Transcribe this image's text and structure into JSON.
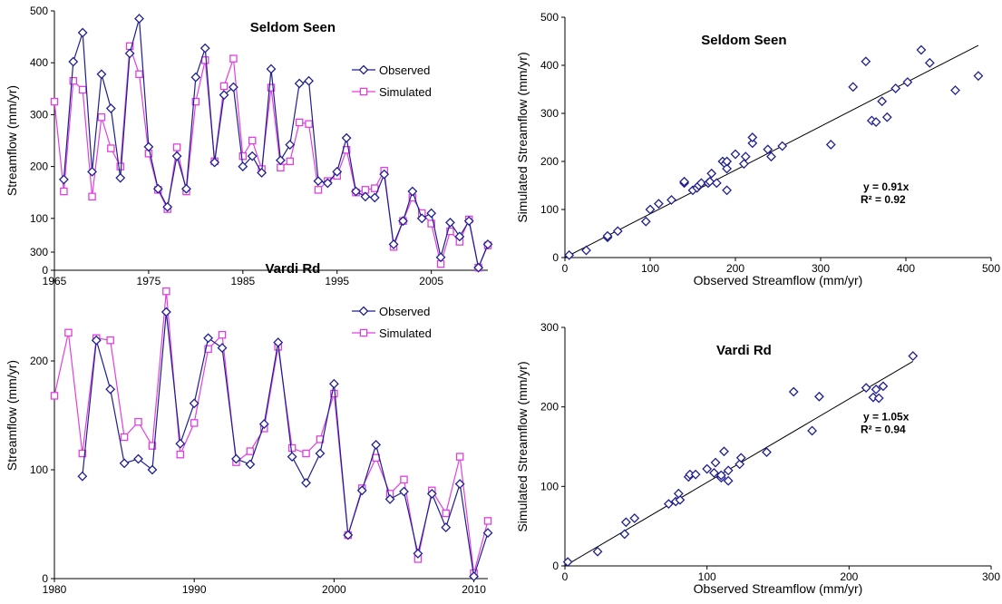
{
  "colors": {
    "observed": "#1f1f8f",
    "simulated": "#e040e0",
    "axis": "#000000",
    "fit": "#000000"
  },
  "chart_data": [
    {
      "type": "line",
      "title": "Seldom Seen",
      "xlabel": "",
      "ylabel": "Streamflow (mm/yr)",
      "xlim": [
        1965,
        2011
      ],
      "ylim": [
        0,
        500
      ],
      "xticks": [
        1965,
        1975,
        1985,
        1995,
        2005
      ],
      "yticks": [
        0,
        100,
        200,
        300,
        400,
        500
      ],
      "legend": "right",
      "series": [
        {
          "name": "Observed",
          "marker": "diamond",
          "x": [
            1966,
            1967,
            1968,
            1969,
            1970,
            1971,
            1972,
            1973,
            1974,
            1975,
            1976,
            1977,
            1978,
            1979,
            1980,
            1981,
            1982,
            1983,
            1984,
            1985,
            1986,
            1987,
            1988,
            1989,
            1990,
            1991,
            1992,
            1993,
            1994,
            1995,
            1996,
            1997,
            1998,
            1999,
            2000,
            2001,
            2002,
            2003,
            2004,
            2005,
            2006,
            2007,
            2008,
            2009,
            2010,
            2011
          ],
          "values": [
            175,
            402,
            458,
            190,
            378,
            312,
            178,
            418,
            485,
            238,
            157,
            122,
            220,
            157,
            372,
            428,
            208,
            338,
            353,
            200,
            220,
            188,
            388,
            212,
            242,
            360,
            365,
            172,
            168,
            190,
            255,
            152,
            142,
            140,
            185,
            50,
            95,
            152,
            100,
            110,
            25,
            92,
            65,
            95,
            5,
            50
          ]
        },
        {
          "name": "Simulated",
          "marker": "square",
          "x": [
            1965,
            1966,
            1967,
            1968,
            1969,
            1970,
            1971,
            1972,
            1973,
            1974,
            1975,
            1976,
            1977,
            1978,
            1979,
            1980,
            1981,
            1982,
            1983,
            1984,
            1985,
            1986,
            1987,
            1988,
            1989,
            1990,
            1991,
            1992,
            1993,
            1994,
            1995,
            1996,
            1997,
            1998,
            1999,
            2000,
            2001,
            2002,
            2003,
            2004,
            2005,
            2006,
            2007,
            2008,
            2009,
            2010,
            2011
          ],
          "values": [
            325,
            152,
            365,
            348,
            142,
            295,
            235,
            200,
            432,
            378,
            225,
            155,
            118,
            237,
            152,
            325,
            405,
            210,
            355,
            408,
            220,
            250,
            195,
            352,
            198,
            210,
            285,
            282,
            155,
            172,
            182,
            232,
            150,
            155,
            158,
            192,
            45,
            95,
            140,
            110,
            90,
            12,
            75,
            55,
            98,
            5,
            48
          ]
        }
      ]
    },
    {
      "type": "scatter",
      "title": "Seldom Seen",
      "xlabel": "Observed Streamflow (mm/yr)",
      "ylabel": "Simulated Streamflow (mm/yr)",
      "xlim": [
        0,
        500
      ],
      "ylim": [
        0,
        500
      ],
      "xticks": [
        0,
        100,
        200,
        300,
        400,
        500
      ],
      "yticks": [
        0,
        100,
        200,
        300,
        400,
        500
      ],
      "annotation": [
        "y = 0.91x",
        "R² = 0.92"
      ],
      "fit_slope": 0.91,
      "x": [
        5,
        25,
        50,
        50,
        62,
        95,
        100,
        110,
        125,
        140,
        140,
        150,
        155,
        157,
        160,
        168,
        170,
        172,
        178,
        185,
        188,
        190,
        190,
        190,
        200,
        210,
        212,
        220,
        220,
        238,
        242,
        255,
        312,
        338,
        353,
        360,
        365,
        372,
        378,
        388,
        402,
        418,
        428,
        458,
        485
      ],
      "y": [
        5,
        15,
        42,
        45,
        55,
        75,
        100,
        112,
        120,
        155,
        158,
        140,
        145,
        150,
        155,
        155,
        158,
        175,
        155,
        200,
        195,
        140,
        185,
        200,
        215,
        195,
        210,
        238,
        250,
        225,
        210,
        232,
        235,
        355,
        408,
        285,
        282,
        325,
        292,
        352,
        365,
        432,
        405,
        348,
        378
      ]
    },
    {
      "type": "line",
      "title": "Vardi Rd",
      "xlabel": "",
      "ylabel": "Streamflow (mm/yr)",
      "xlim": [
        1980,
        2011
      ],
      "ylim": [
        0,
        300
      ],
      "xticks": [
        1980,
        1990,
        2000,
        2010
      ],
      "yticks": [
        0,
        100,
        200,
        300
      ],
      "legend": "right",
      "series": [
        {
          "name": "Observed",
          "marker": "diamond",
          "x": [
            1982,
            1983,
            1984,
            1985,
            1986,
            1987,
            1988,
            1989,
            1990,
            1991,
            1992,
            1993,
            1994,
            1995,
            1996,
            1997,
            1998,
            1999,
            2000,
            2001,
            2002,
            2003,
            2004,
            2005,
            2006,
            2007,
            2008,
            2009,
            2010,
            2011
          ],
          "values": [
            94,
            219,
            174,
            106,
            110,
            100,
            245,
            124,
            161,
            221,
            212,
            110,
            105,
            142,
            217,
            112,
            88,
            115,
            179,
            40,
            81,
            123,
            73,
            80,
            23,
            78,
            47,
            87,
            2,
            42
          ]
        },
        {
          "name": "Simulated",
          "marker": "square",
          "x": [
            1980,
            1981,
            1982,
            1983,
            1984,
            1985,
            1986,
            1987,
            1988,
            1989,
            1990,
            1991,
            1992,
            1993,
            1994,
            1995,
            1996,
            1997,
            1998,
            1999,
            2000,
            2001,
            2002,
            2003,
            2004,
            2005,
            2006,
            2007,
            2008,
            2009,
            2010,
            2011
          ],
          "values": [
            168,
            226,
            115,
            221,
            219,
            130,
            144,
            122,
            264,
            114,
            143,
            211,
            224,
            107,
            117,
            138,
            213,
            120,
            115,
            128,
            170,
            40,
            83,
            111,
            78,
            91,
            18,
            81,
            60,
            112,
            5,
            53
          ]
        }
      ]
    },
    {
      "type": "scatter",
      "title": "Vardi Rd",
      "xlabel": "Observed Streamflow (mm/yr)",
      "ylabel": "Simulated Streamflow (mm/yr)",
      "xlim": [
        0,
        300
      ],
      "ylim": [
        0,
        300
      ],
      "xticks": [
        0,
        100,
        200,
        300
      ],
      "yticks": [
        0,
        100,
        200,
        300
      ],
      "annotation": [
        "y = 1.05x",
        "R² = 0.94"
      ],
      "fit_slope": 1.05,
      "x": [
        2,
        23,
        42,
        43,
        49,
        73,
        78,
        81,
        80,
        87,
        88,
        92,
        100,
        105,
        106,
        110,
        110,
        112,
        115,
        115,
        123,
        124,
        142,
        161,
        174,
        179,
        212,
        217,
        219,
        221,
        224,
        245
      ],
      "y": [
        5,
        18,
        40,
        55,
        60,
        78,
        81,
        83,
        91,
        112,
        115,
        115,
        122,
        117,
        130,
        111,
        114,
        144,
        107,
        120,
        128,
        136,
        143,
        219,
        170,
        213,
        224,
        212,
        222,
        211,
        226,
        264
      ]
    }
  ]
}
